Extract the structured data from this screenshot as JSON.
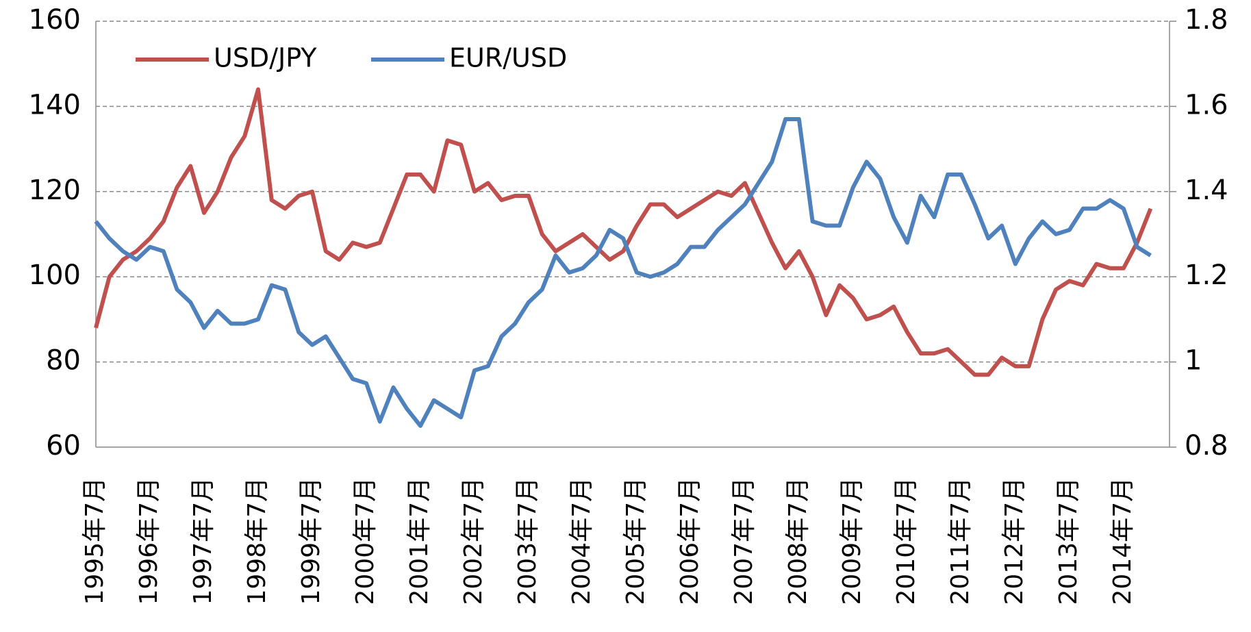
{
  "chart_data": {
    "type": "line",
    "categories": [
      "1995年7月",
      null,
      null,
      null,
      "1996年7月",
      null,
      null,
      null,
      "1997年7月",
      null,
      null,
      null,
      "1998年7月",
      null,
      null,
      null,
      "1999年7月",
      null,
      null,
      null,
      "2000年7月",
      null,
      null,
      null,
      "2001年7月",
      null,
      null,
      null,
      "2002年7月",
      null,
      null,
      null,
      "2003年7月",
      null,
      null,
      null,
      "2004年7月",
      null,
      null,
      null,
      "2005年7月",
      null,
      null,
      null,
      "2006年7月",
      null,
      null,
      null,
      "2007年7月",
      null,
      null,
      null,
      "2008年7月",
      null,
      null,
      null,
      "2009年7月",
      null,
      null,
      null,
      "2010年7月",
      null,
      null,
      null,
      "2011年7月",
      null,
      null,
      null,
      "2012年7月",
      null,
      null,
      null,
      "2013年7月",
      null,
      null,
      null,
      "2014年7月",
      null,
      null
    ],
    "series": [
      {
        "name": "USD/JPY",
        "color": "#c0504d",
        "axis": "y",
        "values": [
          88,
          100,
          104,
          106,
          109,
          113,
          121,
          126,
          115,
          120,
          128,
          133,
          144,
          118,
          116,
          119,
          120,
          106,
          104,
          108,
          107,
          108,
          116,
          124,
          124,
          120,
          132,
          131,
          120,
          122,
          118,
          119,
          119,
          110,
          106,
          108,
          110,
          107,
          104,
          106,
          112,
          117,
          117,
          114,
          116,
          118,
          120,
          119,
          122,
          115,
          108,
          102,
          106,
          100,
          91,
          98,
          95,
          90,
          91,
          93,
          87,
          82,
          82,
          83,
          80,
          77,
          77,
          81,
          79,
          79,
          90,
          97,
          99,
          98,
          103,
          102,
          102,
          108,
          116
        ]
      },
      {
        "name": "EUR/USD",
        "color": "#4f81bd",
        "axis": "y2",
        "values": [
          1.33,
          1.29,
          1.26,
          1.24,
          1.27,
          1.26,
          1.17,
          1.14,
          1.08,
          1.12,
          1.09,
          1.09,
          1.1,
          1.18,
          1.17,
          1.07,
          1.04,
          1.06,
          1.01,
          0.96,
          0.95,
          0.86,
          0.94,
          0.89,
          0.85,
          0.91,
          0.89,
          0.87,
          0.98,
          0.99,
          1.06,
          1.09,
          1.14,
          1.17,
          1.25,
          1.21,
          1.22,
          1.25,
          1.31,
          1.29,
          1.21,
          1.2,
          1.21,
          1.23,
          1.27,
          1.27,
          1.31,
          1.34,
          1.37,
          1.42,
          1.47,
          1.57,
          1.57,
          1.33,
          1.32,
          1.32,
          1.41,
          1.47,
          1.43,
          1.34,
          1.28,
          1.39,
          1.34,
          1.44,
          1.44,
          1.37,
          1.29,
          1.32,
          1.23,
          1.29,
          1.33,
          1.3,
          1.31,
          1.36,
          1.36,
          1.38,
          1.36,
          1.27,
          1.25
        ]
      }
    ],
    "ylim": [
      60,
      160
    ],
    "yticks": [
      60,
      80,
      100,
      120,
      140,
      160
    ],
    "y2lim": [
      0.8,
      1.8
    ],
    "y2ticks": [
      0.8,
      1,
      1.2,
      1.4,
      1.6,
      1.8
    ],
    "grid": true,
    "legend": "top-left"
  }
}
